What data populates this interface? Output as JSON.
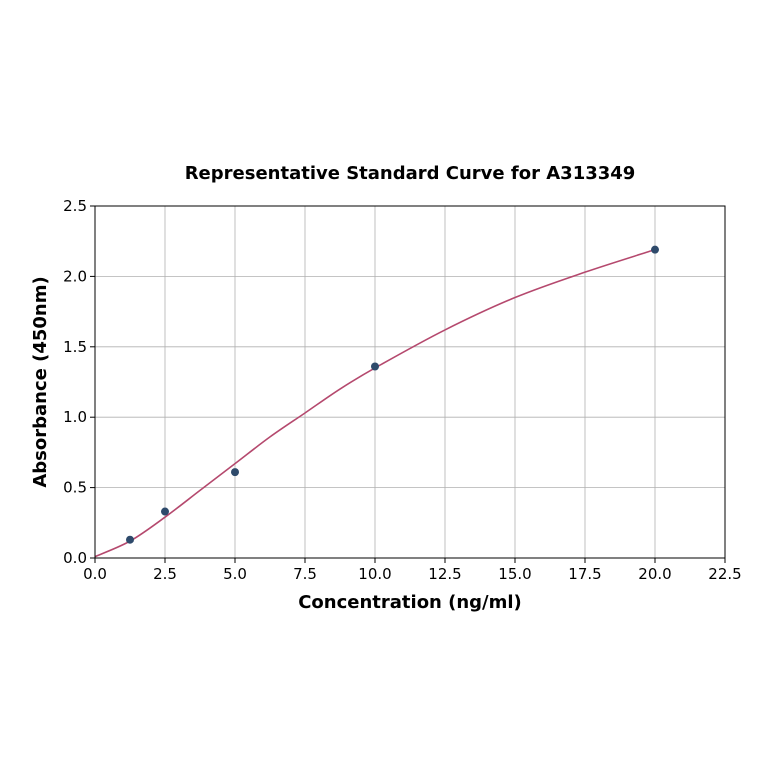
{
  "chart_data": {
    "type": "scatter",
    "title": "Representative Standard Curve for A313349",
    "xlabel": "Concentration (ng/ml)",
    "ylabel": "Absorbance (450nm)",
    "xlim": [
      0,
      22.5
    ],
    "ylim": [
      0,
      2.5
    ],
    "xticks": [
      "0.0",
      "2.5",
      "5.0",
      "7.5",
      "10.0",
      "12.5",
      "15.0",
      "17.5",
      "20.0",
      "22.5"
    ],
    "yticks": [
      "0.0",
      "0.5",
      "1.0",
      "1.5",
      "2.0",
      "2.5"
    ],
    "grid": true,
    "points": {
      "x": [
        1.25,
        2.5,
        5,
        10,
        20
      ],
      "y": [
        0.13,
        0.33,
        0.61,
        1.36,
        2.19
      ],
      "color": "#2e4a6b"
    },
    "fit_curve": {
      "x": [
        0,
        1.25,
        2.5,
        3.75,
        5,
        6.25,
        7.5,
        8.75,
        10,
        12.5,
        15,
        17.5,
        20
      ],
      "y": [
        0.01,
        0.12,
        0.29,
        0.48,
        0.67,
        0.86,
        1.03,
        1.2,
        1.35,
        1.62,
        1.85,
        2.03,
        2.19
      ],
      "color": "#b5496e"
    }
  }
}
